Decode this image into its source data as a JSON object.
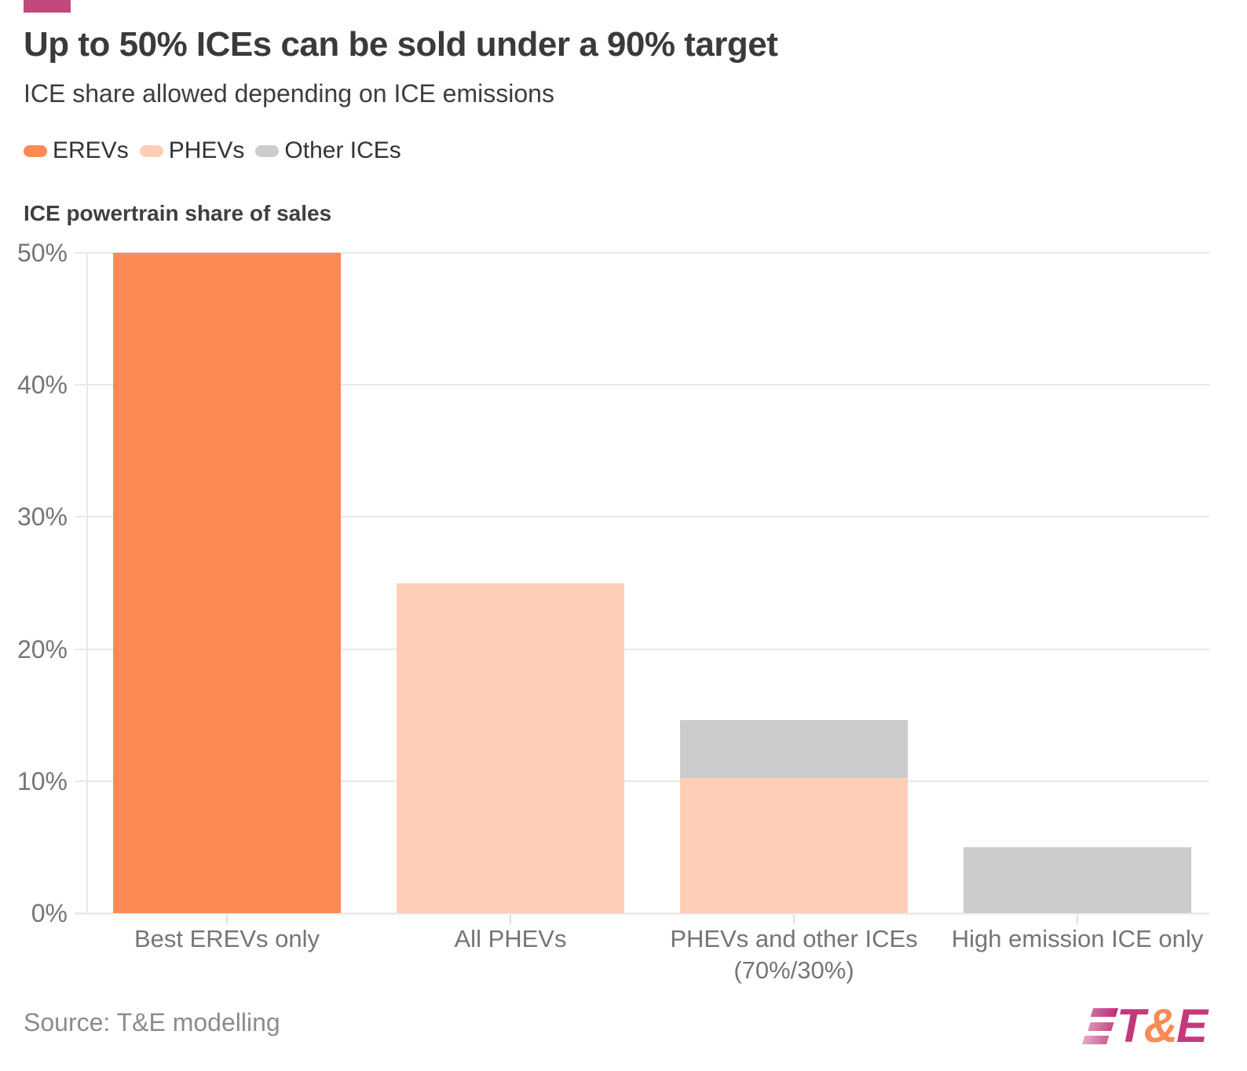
{
  "header": {
    "title": "Up to 50% ICEs can be sold under a 90% target",
    "subtitle": "ICE share allowed depending on ICE emissions"
  },
  "legend": [
    {
      "label": "EREVs",
      "color": "#fc8a55"
    },
    {
      "label": "PHEVs",
      "color": "#fecfb6"
    },
    {
      "label": "Other ICEs",
      "color": "#cccccc"
    }
  ],
  "chart_data": {
    "type": "bar",
    "stacked": true,
    "title": "Up to 50% ICEs can be sold under a 90% target",
    "subtitle": "ICE share allowed depending on ICE emissions",
    "axis_title": "ICE powertrain share of sales",
    "categories": [
      "Best EREVs only",
      "All PHEVs",
      "PHEVs and other ICEs (70%/30%)",
      "High emission ICE only"
    ],
    "series": [
      {
        "name": "EREVs",
        "color": "#fc8a55",
        "values": [
          50,
          0,
          0,
          0
        ]
      },
      {
        "name": "PHEVs",
        "color": "#fecfb6",
        "values": [
          0,
          25,
          10.2,
          0
        ]
      },
      {
        "name": "Other ICEs",
        "color": "#cccccc",
        "values": [
          0,
          0,
          4.4,
          5
        ]
      }
    ],
    "bar_totals": [
      50,
      25,
      14.6,
      5
    ],
    "ylabel": "ICE powertrain share of sales",
    "xlabel": "",
    "ylim": [
      0,
      50
    ],
    "yticks": [
      "0%",
      "10%",
      "20%",
      "30%",
      "40%",
      "50%"
    ],
    "grid": true,
    "legend_position": "top"
  },
  "colors": {
    "accent_bar": "#c3487e",
    "gridline": "#e9e9e9",
    "tick_label": "#757575",
    "logo_magenta": "#c23a7c",
    "logo_orange": "#fa8a55"
  },
  "footer": {
    "source": "Source: T&E modelling",
    "logo": {
      "t": "T",
      "amp": "&",
      "e": "E"
    }
  }
}
